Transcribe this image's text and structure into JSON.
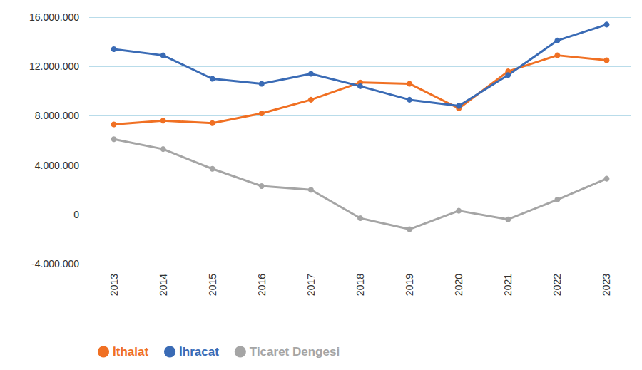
{
  "chart_data": {
    "type": "line",
    "categories": [
      "2013",
      "2014",
      "2015",
      "2016",
      "2017",
      "2018",
      "2019",
      "2020",
      "2021",
      "2022",
      "2023"
    ],
    "series": [
      {
        "name": "İthalat",
        "color": "#f07023",
        "values": [
          7300000,
          7600000,
          7400000,
          8200000,
          9300000,
          10700000,
          10600000,
          8600000,
          11600000,
          12900000,
          12500000
        ]
      },
      {
        "name": "İhracat",
        "color": "#3a6bb5",
        "values": [
          13400000,
          12900000,
          11000000,
          10600000,
          11400000,
          10400000,
          9300000,
          8800000,
          11300000,
          14100000,
          15400000
        ]
      },
      {
        "name": "Ticaret Dengesi",
        "color": "#a5a5a5",
        "values": [
          6100000,
          5300000,
          3700000,
          2300000,
          2000000,
          -300000,
          -1200000,
          300000,
          -400000,
          1200000,
          2900000
        ]
      }
    ],
    "ylim": [
      -4000000,
      16000000
    ],
    "yticks": [
      {
        "value": -4000000,
        "label": "-4.000.000"
      },
      0,
      {
        "value": 4000000,
        "label": "4.000.000"
      },
      {
        "value": 8000000,
        "label": "8.000.000"
      },
      {
        "value": 12000000,
        "label": "12.000.000"
      },
      {
        "value": 16000000,
        "label": "16.000.000"
      }
    ],
    "grid": true,
    "legend": "bottom-left",
    "marker": "circle"
  }
}
